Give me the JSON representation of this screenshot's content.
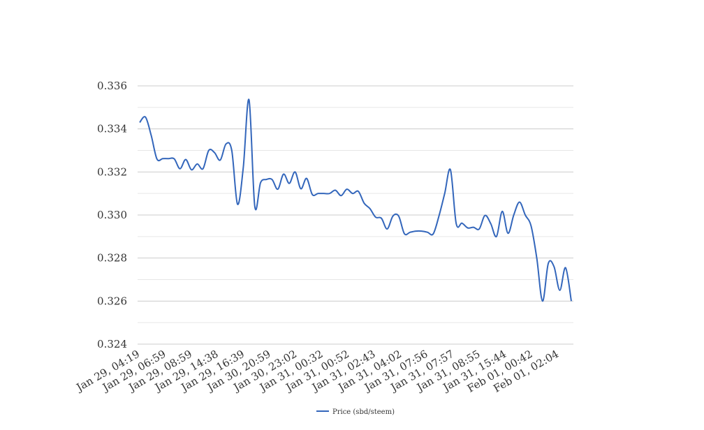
{
  "chart_data": {
    "type": "line",
    "title": "",
    "xlabel": "",
    "ylabel": "",
    "ylim": [
      0.324,
      0.336
    ],
    "yticks": [
      "0.324",
      "0.326",
      "0.328",
      "0.330",
      "0.332",
      "0.334",
      "0.336"
    ],
    "xtick_labels": [
      "Jan 29, 04:19",
      "Jan 29, 06:59",
      "Jan 29, 08:59",
      "Jan 29, 14:38",
      "Jan 29, 16:39",
      "Jan 30, 20:59",
      "Jan 30, 23:02",
      "Jan 31, 00:32",
      "Jan 31, 00:52",
      "Jan 31, 02:43",
      "Jan 31, 04:02",
      "Jan 31, 07:56",
      "Jan 31, 07:57",
      "Jan 31, 08:55",
      "Jan 31, 15:44",
      "Feb 01, 00:42",
      "Feb 01, 02:04"
    ],
    "grid": true,
    "legend_position": "bottom",
    "series": [
      {
        "name": "Price (sbd/steem)",
        "color": "#3366bb",
        "values": [
          0.3343,
          0.33455,
          0.3337,
          0.3326,
          0.33262,
          0.33262,
          0.33261,
          0.33215,
          0.33258,
          0.3321,
          0.33237,
          0.33215,
          0.333,
          0.3329,
          0.33255,
          0.3333,
          0.333,
          0.3305,
          0.3322,
          0.33535,
          0.3304,
          0.3315,
          0.33165,
          0.33165,
          0.3312,
          0.3319,
          0.33147,
          0.332,
          0.33122,
          0.3317,
          0.33095,
          0.331,
          0.331,
          0.331,
          0.33115,
          0.3309,
          0.3312,
          0.331,
          0.3311,
          0.33055,
          0.3303,
          0.3299,
          0.32985,
          0.32935,
          0.32995,
          0.32995,
          0.32913,
          0.3292,
          0.32925,
          0.32925,
          0.3292,
          0.32912,
          0.32995,
          0.331,
          0.3321,
          0.3296,
          0.32962,
          0.3294,
          0.32943,
          0.32935,
          0.32998,
          0.3296,
          0.329,
          0.33017,
          0.32915,
          0.33,
          0.3306,
          0.33,
          0.3295,
          0.328,
          0.326,
          0.32775,
          0.3276,
          0.3265,
          0.32755,
          0.326
        ]
      }
    ]
  }
}
